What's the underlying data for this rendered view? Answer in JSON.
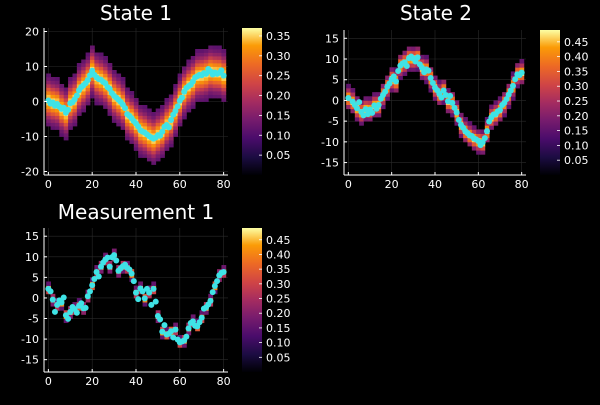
{
  "colormap": "inferno",
  "background": "#000000",
  "marker_color": "#3fe3e6",
  "panels": [
    {
      "title": "State 1",
      "chart_data": {
        "type": "heatmap",
        "xlim": [
          -2,
          82
        ],
        "ylim": [
          -21,
          21
        ],
        "xticks": [
          0,
          20,
          40,
          60,
          80
        ],
        "yticks": [
          -20,
          -10,
          0,
          10,
          20
        ],
        "grid": true,
        "colorbar": {
          "min": 0,
          "max": 0.37,
          "ticks": [
            "0.05",
            "0.10",
            "0.15",
            "0.20",
            "0.25",
            "0.30",
            "0.35"
          ],
          "tick_values": [
            0.05,
            0.1,
            0.15,
            0.2,
            0.25,
            0.3,
            0.35
          ]
        },
        "band_spread": 3.2,
        "points_x": [
          0,
          1,
          2,
          3,
          4,
          5,
          6,
          7,
          8,
          9,
          10,
          11,
          12,
          13,
          14,
          15,
          16,
          17,
          18,
          19,
          20,
          21,
          22,
          23,
          24,
          25,
          26,
          27,
          28,
          29,
          30,
          31,
          32,
          33,
          34,
          35,
          36,
          37,
          38,
          39,
          40,
          41,
          42,
          43,
          44,
          45,
          46,
          47,
          48,
          49,
          50,
          51,
          52,
          53,
          54,
          55,
          56,
          57,
          58,
          59,
          60,
          61,
          62,
          63,
          64,
          65,
          66,
          67,
          68,
          69,
          70,
          71,
          72,
          73,
          74,
          75,
          76,
          77,
          78,
          79,
          80
        ],
        "points_y": [
          0.3,
          -0.6,
          -0.3,
          -1.2,
          -0.7,
          -1.5,
          -2.1,
          -1.8,
          -3.2,
          -2.4,
          -0.5,
          -0.2,
          0.6,
          1.7,
          3.2,
          4.1,
          4.6,
          5.2,
          6.1,
          7.5,
          8.8,
          7.6,
          6.9,
          6.4,
          6.2,
          5.6,
          5.2,
          4.1,
          3.6,
          2.4,
          1.6,
          1.1,
          0.5,
          -0.1,
          -0.9,
          -1.9,
          -3.6,
          -4.1,
          -4.8,
          -5.6,
          -6.3,
          -7.1,
          -8.2,
          -8.6,
          -8.9,
          -9.4,
          -9.9,
          -10.3,
          -10.6,
          -10.3,
          -9.6,
          -9.8,
          -8.6,
          -7.2,
          -6.7,
          -7.4,
          -5.3,
          -3.8,
          -2.7,
          -1.4,
          0.2,
          1.1,
          2.8,
          3.9,
          4.4,
          4.8,
          5.7,
          6.9,
          7.2,
          7.6,
          7.5,
          8.1,
          7.9,
          9.3,
          8.6,
          7.7,
          8.3,
          7.9,
          8.2,
          8.9,
          7.4
        ]
      }
    },
    {
      "title": "State 2",
      "chart_data": {
        "type": "heatmap",
        "xlim": [
          -2,
          82
        ],
        "ylim": [
          -18,
          17
        ],
        "xticks": [
          0,
          20,
          40,
          60,
          80
        ],
        "yticks": [
          -15,
          -10,
          -5,
          0,
          5,
          10,
          15
        ],
        "grid": true,
        "colorbar": {
          "min": 0,
          "max": 0.49,
          "ticks": [
            "0.05",
            "0.10",
            "0.15",
            "0.20",
            "0.25",
            "0.30",
            "0.35",
            "0.40",
            "0.45"
          ],
          "tick_values": [
            0.05,
            0.1,
            0.15,
            0.2,
            0.25,
            0.3,
            0.35,
            0.4,
            0.45
          ]
        },
        "band_spread": 1.3,
        "points_x": [
          0,
          2,
          3,
          4,
          5,
          6,
          7,
          8,
          9,
          10,
          11,
          12,
          13,
          14,
          15,
          16,
          17,
          18,
          19,
          20,
          21,
          22,
          23,
          24,
          25,
          26,
          27,
          28,
          29,
          30,
          31,
          32,
          33,
          34,
          35,
          36,
          37,
          38,
          39,
          40,
          41,
          42,
          43,
          44,
          45,
          46,
          47,
          48,
          49,
          50,
          51,
          52,
          53,
          54,
          55,
          56,
          57,
          58,
          59,
          60,
          61,
          62,
          63,
          64,
          65,
          66,
          67,
          68,
          69,
          70,
          71,
          72,
          73,
          74,
          75,
          76,
          77,
          78,
          79,
          80
        ],
        "points_y": [
          0.6,
          -0.3,
          -1.1,
          -1.9,
          -0.4,
          -2.8,
          -3.6,
          -2.1,
          -3.3,
          -2.2,
          -3.0,
          -1.2,
          -2.0,
          -1.1,
          0.4,
          1.3,
          2.1,
          3.3,
          4.1,
          5.1,
          5.8,
          4.6,
          7.1,
          8.4,
          8.9,
          9.2,
          8.3,
          10.2,
          10.6,
          10.1,
          9.4,
          10.4,
          8.7,
          7.9,
          6.8,
          7.5,
          7.2,
          5.4,
          4.2,
          3.1,
          2.5,
          1.6,
          0.7,
          2.4,
          1.3,
          -0.2,
          1.1,
          -0.6,
          -1.8,
          -2.9,
          -4.7,
          -5.9,
          -6.6,
          -7.4,
          -7.9,
          -8.4,
          -8.6,
          -9.2,
          -9.4,
          -9.8,
          -10.8,
          -10.1,
          -9.1,
          -7.4,
          -5.1,
          -4.1,
          -3.4,
          -3.3,
          -2.6,
          -2.3,
          -1.1,
          -0.6,
          0.3,
          1.4,
          2.4,
          3.5,
          5.1,
          6.3,
          6.1,
          6.7
        ]
      }
    },
    {
      "title": "Measurement 1",
      "chart_data": {
        "type": "heatmap",
        "xlim": [
          -2,
          82
        ],
        "ylim": [
          -18,
          17
        ],
        "xticks": [
          0,
          20,
          40,
          60,
          80
        ],
        "yticks": [
          -15,
          -10,
          -5,
          0,
          5,
          10,
          15
        ],
        "grid": true,
        "colorbar": {
          "min": 0,
          "max": 0.49,
          "ticks": [
            "0.05",
            "0.10",
            "0.15",
            "0.20",
            "0.25",
            "0.30",
            "0.35",
            "0.40",
            "0.45"
          ],
          "tick_values": [
            0.05,
            0.1,
            0.15,
            0.2,
            0.25,
            0.3,
            0.35,
            0.4,
            0.45
          ]
        },
        "band_spread": 0.6,
        "points_x": [
          0,
          1,
          2,
          3,
          4,
          5,
          6,
          7,
          8,
          9,
          10,
          11,
          12,
          13,
          14,
          15,
          16,
          17,
          18,
          19,
          20,
          21,
          22,
          23,
          24,
          25,
          26,
          27,
          28,
          29,
          30,
          31,
          32,
          33,
          34,
          35,
          36,
          37,
          38,
          39,
          40,
          41,
          42,
          43,
          44,
          45,
          46,
          47,
          48,
          49,
          50,
          51,
          52,
          53,
          54,
          55,
          56,
          57,
          58,
          59,
          60,
          61,
          62,
          63,
          64,
          65,
          66,
          67,
          68,
          69,
          70,
          71,
          72,
          73,
          74,
          75,
          76,
          77,
          78,
          79,
          80
        ],
        "points_y": [
          2.2,
          1.6,
          -0.4,
          -3.4,
          -1.7,
          -0.6,
          -1.1,
          0.1,
          -4.2,
          -5.1,
          -3.4,
          -2.2,
          -2.7,
          -3.6,
          -1.9,
          -1.3,
          -2.5,
          -2.4,
          0.4,
          1.6,
          3.1,
          4.6,
          6.3,
          5.2,
          7.6,
          8.6,
          9.3,
          9.8,
          7.6,
          9.9,
          10.4,
          9.1,
          6.6,
          7.2,
          7.7,
          8.1,
          7.3,
          6.9,
          5.9,
          4.1,
          1.3,
          -0.3,
          2.3,
          1.6,
          -0.1,
          2.2,
          1.3,
          -1.7,
          2.2,
          -0.9,
          -4.4,
          -5.2,
          -8.2,
          -6.6,
          -8.9,
          -8.7,
          -8.1,
          -9.6,
          -7.7,
          -10.1,
          -10.8,
          -10.6,
          -10.3,
          -9.4,
          -7.4,
          -6.1,
          -5.7,
          -6.8,
          -6.9,
          -5.9,
          -4.8,
          -2.6,
          -2.3,
          -1.6,
          -0.7,
          1.4,
          2.9,
          4.1,
          5.5,
          6.1,
          6.3
        ]
      }
    }
  ]
}
